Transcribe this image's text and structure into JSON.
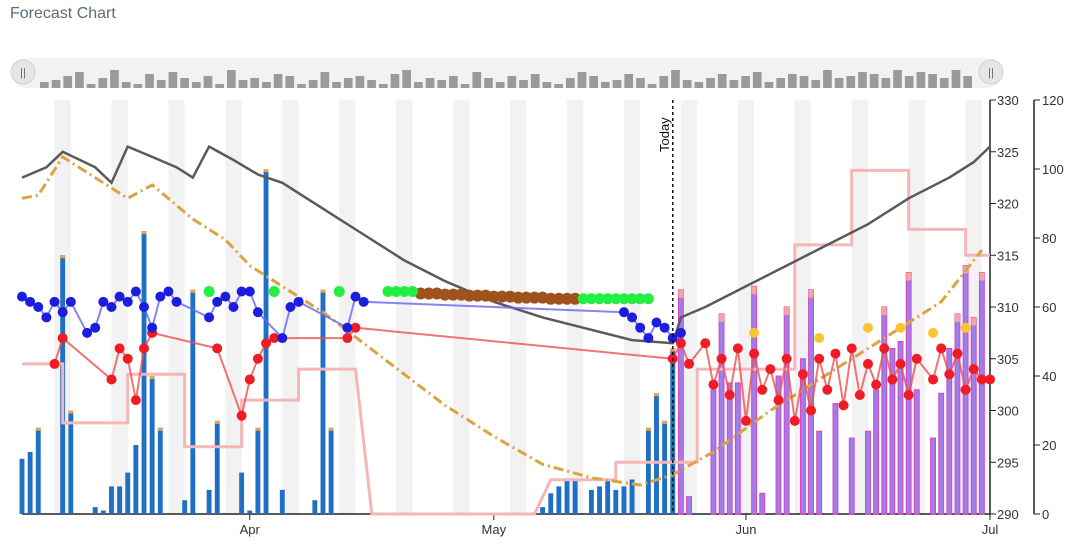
{
  "chart_data": {
    "title": "Forecast Chart",
    "type": "line",
    "x_range": [
      "2025-03-04",
      "2025-07-01"
    ],
    "today": "2025-05-23",
    "today_label": "Today",
    "x_ticks": [
      {
        "date": "2025-04-01",
        "label": "Apr"
      },
      {
        "date": "2025-05-01",
        "label": "May"
      },
      {
        "date": "2025-06-01",
        "label": "Jun"
      },
      {
        "date": "2025-07-01",
        "label": "Jul"
      }
    ],
    "y_left": {
      "range": [
        290,
        330
      ],
      "ticks": [
        290,
        295,
        300,
        305,
        310,
        315,
        320,
        325,
        330
      ]
    },
    "y_right": {
      "range": [
        0,
        120
      ],
      "ticks": [
        0,
        20,
        40,
        60,
        80,
        100,
        120
      ]
    },
    "weekend_shading": true,
    "colors": {
      "gray_line": "#5a5a5a",
      "gold_line": "#d9a441",
      "pink_line": "#f4b6b6",
      "bar_actual": "#1f6fc4",
      "bar_forecast": "#9a80e8",
      "bar_forecast_edge": "#e040c0",
      "bar_cap": "#f2a24a",
      "dot_blue": "#1d1ddd",
      "dot_green": "#22ee44",
      "dot_brown": "#a0521d",
      "dot_red": "#ee1c24",
      "dot_yellow": "#f6c530",
      "dot_line_blue": "#6666ee",
      "dot_line_red": "#ee5050",
      "shade": "#f2f2f2"
    },
    "gray_series": [
      [
        "2025-03-04",
        322.5
      ],
      [
        "2025-03-07",
        323.5
      ],
      [
        "2025-03-09",
        325.0
      ],
      [
        "2025-03-13",
        323.5
      ],
      [
        "2025-03-15",
        322.0
      ],
      [
        "2025-03-17",
        325.5
      ],
      [
        "2025-03-20",
        324.5
      ],
      [
        "2025-03-23",
        323.5
      ],
      [
        "2025-03-25",
        322.5
      ],
      [
        "2025-03-27",
        325.5
      ],
      [
        "2025-03-30",
        324.2
      ],
      [
        "2025-04-02",
        322.8
      ],
      [
        "2025-04-05",
        322.0
      ],
      [
        "2025-04-10",
        319.5
      ],
      [
        "2025-04-15",
        317.0
      ],
      [
        "2025-04-20",
        314.5
      ],
      [
        "2025-04-25",
        312.5
      ],
      [
        "2025-05-01",
        310.5
      ],
      [
        "2025-05-07",
        309.0
      ],
      [
        "2025-05-13",
        307.8
      ],
      [
        "2025-05-18",
        306.8
      ],
      [
        "2025-05-23",
        306.5
      ],
      [
        "2025-05-24",
        309.0
      ],
      [
        "2025-05-27",
        310.0
      ],
      [
        "2025-06-01",
        312.0
      ],
      [
        "2025-06-06",
        314.0
      ],
      [
        "2025-06-11",
        316.0
      ],
      [
        "2025-06-16",
        318.0
      ],
      [
        "2025-06-21",
        320.5
      ],
      [
        "2025-06-26",
        322.5
      ],
      [
        "2025-06-29",
        324.0
      ],
      [
        "2025-07-01",
        325.5
      ]
    ],
    "gold_series": [
      [
        "2025-03-04",
        320.5
      ],
      [
        "2025-03-06",
        320.8
      ],
      [
        "2025-03-09",
        324.5
      ],
      [
        "2025-03-14",
        322.0
      ],
      [
        "2025-03-17",
        320.5
      ],
      [
        "2025-03-20",
        321.8
      ],
      [
        "2025-03-25",
        318.5
      ],
      [
        "2025-03-29",
        316.5
      ],
      [
        "2025-04-01",
        314.0
      ],
      [
        "2025-04-05",
        312.0
      ],
      [
        "2025-04-10",
        309.5
      ],
      [
        "2025-04-15",
        306.5
      ],
      [
        "2025-04-20",
        303.5
      ],
      [
        "2025-04-25",
        300.5
      ],
      [
        "2025-05-01",
        297.5
      ],
      [
        "2025-05-07",
        294.8
      ],
      [
        "2025-05-13",
        293.5
      ],
      [
        "2025-05-19",
        292.8
      ],
      [
        "2025-05-23",
        293.8
      ],
      [
        "2025-05-28",
        296.0
      ],
      [
        "2025-06-04",
        300.0
      ],
      [
        "2025-06-11",
        303.5
      ],
      [
        "2025-06-18",
        307.0
      ],
      [
        "2025-06-25",
        310.5
      ],
      [
        "2025-06-30",
        315.5
      ]
    ],
    "pink_series": [
      [
        "2025-03-04",
        304.5
      ],
      [
        "2025-03-09",
        304.5
      ],
      [
        "2025-03-09",
        298.8
      ],
      [
        "2025-03-17",
        298.8
      ],
      [
        "2025-03-17",
        303.5
      ],
      [
        "2025-03-24",
        303.5
      ],
      [
        "2025-03-24",
        296.5
      ],
      [
        "2025-03-31",
        296.5
      ],
      [
        "2025-03-31",
        301.0
      ],
      [
        "2025-04-07",
        301.0
      ],
      [
        "2025-04-07",
        304.0
      ],
      [
        "2025-04-14",
        304.0
      ],
      [
        "2025-04-16",
        290.0
      ],
      [
        "2025-05-06",
        290.0
      ],
      [
        "2025-05-08",
        293.3
      ],
      [
        "2025-05-16",
        293.3
      ],
      [
        "2025-05-16",
        295.0
      ],
      [
        "2025-05-26",
        295.0
      ],
      [
        "2025-05-26",
        304.0
      ],
      [
        "2025-06-07",
        304.0
      ],
      [
        "2025-06-07",
        316.0
      ],
      [
        "2025-06-14",
        316.0
      ],
      [
        "2025-06-14",
        323.2
      ],
      [
        "2025-06-21",
        323.2
      ],
      [
        "2025-06-21",
        317.5
      ],
      [
        "2025-06-28",
        317.5
      ],
      [
        "2025-06-28",
        315.0
      ],
      [
        "2025-07-01",
        315.0
      ]
    ],
    "bars": [
      [
        "2025-03-04",
        16
      ],
      [
        "2025-03-05",
        18
      ],
      [
        "2025-03-06",
        25
      ],
      [
        "2025-03-09",
        75
      ],
      [
        "2025-03-10",
        30
      ],
      [
        "2025-03-13",
        2
      ],
      [
        "2025-03-14",
        1
      ],
      [
        "2025-03-15",
        8
      ],
      [
        "2025-03-16",
        8
      ],
      [
        "2025-03-17",
        12
      ],
      [
        "2025-03-18",
        20
      ],
      [
        "2025-03-19",
        82
      ],
      [
        "2025-03-20",
        40
      ],
      [
        "2025-03-21",
        25
      ],
      [
        "2025-03-24",
        4
      ],
      [
        "2025-03-25",
        65
      ],
      [
        "2025-03-27",
        7
      ],
      [
        "2025-03-28",
        27
      ],
      [
        "2025-03-31",
        12
      ],
      [
        "2025-04-01",
        1
      ],
      [
        "2025-04-02",
        25
      ],
      [
        "2025-04-03",
        100
      ],
      [
        "2025-04-05",
        7
      ],
      [
        "2025-04-09",
        4
      ],
      [
        "2025-04-10",
        65
      ],
      [
        "2025-04-11",
        25
      ],
      [
        "2025-05-07",
        2
      ],
      [
        "2025-05-08",
        6
      ],
      [
        "2025-05-09",
        8
      ],
      [
        "2025-05-10",
        10
      ],
      [
        "2025-05-11",
        10
      ],
      [
        "2025-05-13",
        7
      ],
      [
        "2025-05-14",
        8
      ],
      [
        "2025-05-15",
        10
      ],
      [
        "2025-05-16",
        7
      ],
      [
        "2025-05-17",
        8
      ],
      [
        "2025-05-18",
        10
      ],
      [
        "2025-05-20",
        25
      ],
      [
        "2025-05-21",
        35
      ],
      [
        "2025-05-22",
        27
      ],
      [
        "2025-05-23",
        48
      ]
    ],
    "forecast_bars": [
      [
        "2025-05-24",
        65
      ],
      [
        "2025-05-25",
        5
      ],
      [
        "2025-05-28",
        36
      ],
      [
        "2025-05-29",
        58
      ],
      [
        "2025-05-30",
        38
      ],
      [
        "2025-05-31",
        38
      ],
      [
        "2025-06-02",
        66
      ],
      [
        "2025-06-03",
        6
      ],
      [
        "2025-06-05",
        40
      ],
      [
        "2025-06-06",
        60
      ],
      [
        "2025-06-08",
        45
      ],
      [
        "2025-06-09",
        65
      ],
      [
        "2025-06-10",
        24
      ],
      [
        "2025-06-12",
        32
      ],
      [
        "2025-06-14",
        22
      ],
      [
        "2025-06-16",
        24
      ],
      [
        "2025-06-17",
        36
      ],
      [
        "2025-06-18",
        60
      ],
      [
        "2025-06-19",
        48
      ],
      [
        "2025-06-20",
        50
      ],
      [
        "2025-06-21",
        70
      ],
      [
        "2025-06-22",
        36
      ],
      [
        "2025-06-24",
        22
      ],
      [
        "2025-06-25",
        35
      ],
      [
        "2025-06-26",
        48
      ],
      [
        "2025-06-27",
        58
      ],
      [
        "2025-06-28",
        72
      ],
      [
        "2025-06-29",
        57
      ],
      [
        "2025-06-30",
        70
      ]
    ],
    "dots_blue": [
      [
        "2025-03-04",
        311.0
      ],
      [
        "2025-03-05",
        310.5
      ],
      [
        "2025-03-06",
        310.0
      ],
      [
        "2025-03-07",
        309.0
      ],
      [
        "2025-03-08",
        310.5
      ],
      [
        "2025-03-09",
        309.5
      ],
      [
        "2025-03-10",
        310.5
      ],
      [
        "2025-03-12",
        307.5
      ],
      [
        "2025-03-13",
        308.0
      ],
      [
        "2025-03-14",
        310.5
      ],
      [
        "2025-03-15",
        310.0
      ],
      [
        "2025-03-16",
        311.0
      ],
      [
        "2025-03-17",
        310.5
      ],
      [
        "2025-03-18",
        311.5
      ],
      [
        "2025-03-19",
        310.0
      ],
      [
        "2025-03-20",
        308.0
      ],
      [
        "2025-03-21",
        311.0
      ],
      [
        "2025-03-22",
        311.5
      ],
      [
        "2025-03-23",
        310.5
      ],
      [
        "2025-03-27",
        309.0
      ],
      [
        "2025-03-28",
        310.5
      ],
      [
        "2025-03-29",
        311.0
      ],
      [
        "2025-03-30",
        310.0
      ],
      [
        "2025-03-31",
        311.5
      ],
      [
        "2025-04-01",
        311.5
      ],
      [
        "2025-04-02",
        309.5
      ],
      [
        "2025-04-05",
        307.0
      ],
      [
        "2025-04-06",
        310.0
      ],
      [
        "2025-04-07",
        310.5
      ],
      [
        "2025-04-13",
        308.0
      ],
      [
        "2025-04-14",
        311.0
      ],
      [
        "2025-04-15",
        310.5
      ],
      [
        "2025-05-17",
        309.5
      ],
      [
        "2025-05-18",
        309.0
      ],
      [
        "2025-05-19",
        308.0
      ],
      [
        "2025-05-20",
        307.0
      ],
      [
        "2025-05-21",
        308.5
      ],
      [
        "2025-05-22",
        308.0
      ],
      [
        "2025-05-23",
        307.0
      ],
      [
        "2025-05-24",
        307.5
      ]
    ],
    "dots_green": [
      [
        "2025-03-27",
        311.5
      ],
      [
        "2025-04-04",
        311.5
      ],
      [
        "2025-04-12",
        311.5
      ],
      [
        "2025-04-18",
        311.5
      ],
      [
        "2025-04-19",
        311.5
      ],
      [
        "2025-04-20",
        311.5
      ],
      [
        "2025-04-21",
        311.5
      ],
      [
        "2025-05-12",
        310.8
      ],
      [
        "2025-05-13",
        310.8
      ],
      [
        "2025-05-14",
        310.8
      ],
      [
        "2025-05-15",
        310.8
      ],
      [
        "2025-05-16",
        310.8
      ],
      [
        "2025-05-17",
        310.8
      ],
      [
        "2025-05-18",
        310.8
      ],
      [
        "2025-05-19",
        310.8
      ],
      [
        "2025-05-20",
        310.8
      ]
    ],
    "dots_brown": [
      [
        "2025-04-22",
        311.3
      ],
      [
        "2025-04-23",
        311.3
      ],
      [
        "2025-04-24",
        311.3
      ],
      [
        "2025-04-25",
        311.2
      ],
      [
        "2025-04-26",
        311.2
      ],
      [
        "2025-04-27",
        311.2
      ],
      [
        "2025-04-28",
        311.1
      ],
      [
        "2025-04-29",
        311.1
      ],
      [
        "2025-04-30",
        311.1
      ],
      [
        "2025-05-01",
        311.0
      ],
      [
        "2025-05-02",
        311.0
      ],
      [
        "2025-05-03",
        311.0
      ],
      [
        "2025-05-04",
        310.9
      ],
      [
        "2025-05-05",
        310.9
      ],
      [
        "2025-05-06",
        310.9
      ],
      [
        "2025-05-07",
        310.9
      ],
      [
        "2025-05-08",
        310.8
      ],
      [
        "2025-05-09",
        310.8
      ],
      [
        "2025-05-10",
        310.8
      ],
      [
        "2025-05-11",
        310.8
      ]
    ],
    "dots_red": [
      [
        "2025-03-08",
        304.5
      ],
      [
        "2025-03-09",
        307.0
      ],
      [
        "2025-03-15",
        303.0
      ],
      [
        "2025-03-16",
        306.0
      ],
      [
        "2025-03-17",
        305.0
      ],
      [
        "2025-03-18",
        301.0
      ],
      [
        "2025-03-19",
        306.0
      ],
      [
        "2025-03-20",
        307.5
      ],
      [
        "2025-03-28",
        306.0
      ],
      [
        "2025-03-31",
        299.5
      ],
      [
        "2025-04-01",
        303.0
      ],
      [
        "2025-04-02",
        305.0
      ],
      [
        "2025-04-03",
        306.5
      ],
      [
        "2025-04-04",
        307.0
      ],
      [
        "2025-04-13",
        307.0
      ],
      [
        "2025-04-14",
        308.0
      ],
      [
        "2025-05-23",
        305.0
      ],
      [
        "2025-05-24",
        306.5
      ],
      [
        "2025-05-25",
        304.5
      ],
      [
        "2025-05-27",
        306.5
      ],
      [
        "2025-05-28",
        302.5
      ],
      [
        "2025-05-29",
        305.0
      ],
      [
        "2025-05-30",
        301.5
      ],
      [
        "2025-05-31",
        306.0
      ],
      [
        "2025-06-01",
        299.0
      ],
      [
        "2025-06-02",
        305.5
      ],
      [
        "2025-06-03",
        302.0
      ],
      [
        "2025-06-04",
        304.0
      ],
      [
        "2025-06-05",
        301.0
      ],
      [
        "2025-06-06",
        305.0
      ],
      [
        "2025-06-07",
        299.0
      ],
      [
        "2025-06-08",
        303.5
      ],
      [
        "2025-06-09",
        300.0
      ],
      [
        "2025-06-10",
        305.0
      ],
      [
        "2025-06-11",
        302.0
      ],
      [
        "2025-06-12",
        305.5
      ],
      [
        "2025-06-13",
        300.5
      ],
      [
        "2025-06-14",
        306.0
      ],
      [
        "2025-06-15",
        301.5
      ],
      [
        "2025-06-16",
        304.5
      ],
      [
        "2025-06-17",
        302.5
      ],
      [
        "2025-06-18",
        306.0
      ],
      [
        "2025-06-19",
        303.0
      ],
      [
        "2025-06-20",
        304.5
      ],
      [
        "2025-06-21",
        301.5
      ],
      [
        "2025-06-22",
        305.0
      ],
      [
        "2025-06-24",
        303.0
      ],
      [
        "2025-06-25",
        306.0
      ],
      [
        "2025-06-26",
        303.5
      ],
      [
        "2025-06-27",
        305.5
      ],
      [
        "2025-06-28",
        302.0
      ],
      [
        "2025-06-29",
        304.0
      ],
      [
        "2025-06-30",
        303.0
      ],
      [
        "2025-07-01",
        303.0
      ]
    ],
    "dots_yellow": [
      [
        "2025-06-02",
        307.5
      ],
      [
        "2025-06-10",
        307.0
      ],
      [
        "2025-06-16",
        308.0
      ],
      [
        "2025-06-20",
        308.0
      ],
      [
        "2025-06-24",
        307.5
      ],
      [
        "2025-06-28",
        308.0
      ]
    ],
    "navigator_bars": [
      3,
      4,
      6,
      8,
      2,
      5,
      9,
      3,
      2,
      7,
      4,
      8,
      5,
      3,
      6,
      2,
      9,
      4,
      5,
      3,
      7,
      6,
      2,
      4,
      8,
      3,
      5,
      6,
      4,
      2,
      7,
      9,
      3,
      5,
      4,
      6,
      2,
      8,
      5,
      3,
      6,
      4,
      7,
      3,
      2,
      5,
      8,
      6,
      3,
      4,
      7,
      5,
      2,
      6,
      9,
      4,
      3,
      5,
      7,
      4,
      6,
      8,
      3,
      5,
      7,
      6,
      4,
      9,
      5,
      6,
      8,
      7,
      5,
      9,
      6,
      8,
      7,
      5,
      9,
      6
    ]
  }
}
